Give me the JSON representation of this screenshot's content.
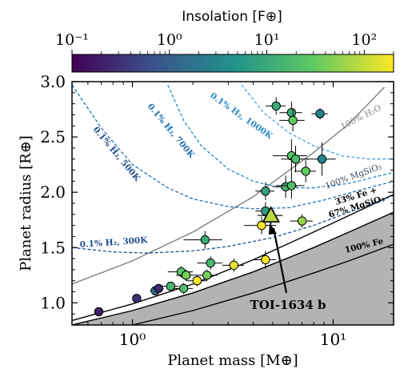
{
  "chart_data": {
    "type": "scatter",
    "xlabel": "Planet mass [M⊕]",
    "ylabel": "Planet radius [R⊕]",
    "xscale": "log",
    "xlim": [
      0.5,
      20
    ],
    "ylim": [
      0.8,
      3.0
    ],
    "x_ticks": [
      1,
      10
    ],
    "x_tick_labels": [
      "10⁰",
      "10¹"
    ],
    "y_ticks": [
      1.0,
      1.5,
      2.0,
      2.5,
      3.0
    ],
    "y_tick_labels": [
      "1.0",
      "1.5",
      "2.0",
      "2.5",
      "3.0"
    ],
    "colorbar": {
      "label": "Insolation [F⊕]",
      "scale": "log",
      "range": [
        0.1,
        200
      ],
      "ticks": [
        0.1,
        1,
        10,
        100
      ],
      "tick_labels": [
        "10⁻¹",
        "10⁰",
        "10¹",
        "10²"
      ],
      "colormap": [
        "#440154",
        "#3b528b",
        "#21918c",
        "#5ec962",
        "#fde725"
      ]
    },
    "shaded_region": {
      "color": "#b3b3b3",
      "description_visible": false
    },
    "curves": [
      {
        "label": "100% H₂O",
        "color": "#7f7f7f",
        "style": "solid",
        "points": [
          [
            0.5,
            1.17
          ],
          [
            1,
            1.38
          ],
          [
            2,
            1.64
          ],
          [
            4,
            1.96
          ],
          [
            8,
            2.36
          ],
          [
            12,
            2.62
          ],
          [
            18,
            2.95
          ]
        ]
      },
      {
        "label": "100% MgSiO₃",
        "color": "#000000",
        "style": "solid",
        "points": [
          [
            0.5,
            0.84
          ],
          [
            1,
            0.99
          ],
          [
            2,
            1.17
          ],
          [
            4,
            1.39
          ],
          [
            8,
            1.64
          ],
          [
            12,
            1.79
          ],
          [
            20,
            1.98
          ]
        ]
      },
      {
        "label": "33% Fe + 67% MgSiO₃",
        "color": "#000000",
        "style": "solid",
        "points": [
          [
            0.5,
            0.8
          ],
          [
            1,
            0.93
          ],
          [
            2,
            1.09
          ],
          [
            4,
            1.28
          ],
          [
            8,
            1.5
          ],
          [
            12,
            1.64
          ],
          [
            20,
            1.82
          ]
        ]
      },
      {
        "label": "100% Fe",
        "color": "#000000",
        "style": "solid",
        "points": [
          [
            1,
            0.8
          ],
          [
            2,
            0.93
          ],
          [
            4,
            1.09
          ],
          [
            8,
            1.27
          ],
          [
            12,
            1.38
          ],
          [
            20,
            1.53
          ]
        ]
      },
      {
        "label": "0.1% H₂, 300K",
        "color": "#1f4e8c",
        "style": "dashed",
        "points": [
          [
            0.5,
            1.5
          ],
          [
            0.8,
            1.46
          ],
          [
            1.2,
            1.45
          ],
          [
            2,
            1.47
          ],
          [
            3,
            1.51
          ],
          [
            5,
            1.59
          ],
          [
            8,
            1.7
          ],
          [
            12,
            1.82
          ],
          [
            20,
            1.97
          ]
        ]
      },
      {
        "label": "0.1% H₂, 500K",
        "color": "#1f6fb0",
        "style": "dashed",
        "points": [
          [
            0.5,
            2.97
          ],
          [
            0.7,
            2.58
          ],
          [
            1,
            2.25
          ],
          [
            1.5,
            2.04
          ],
          [
            2,
            1.94
          ],
          [
            3,
            1.87
          ],
          [
            4,
            1.85
          ],
          [
            6,
            1.86
          ],
          [
            9,
            1.93
          ],
          [
            13,
            2.01
          ],
          [
            20,
            2.1
          ]
        ]
      },
      {
        "label": "0.1% H₂, 700K",
        "color": "#2b88c4",
        "style": "dashed",
        "points": [
          [
            1.5,
            2.97
          ],
          [
            1.8,
            2.65
          ],
          [
            2.2,
            2.42
          ],
          [
            3,
            2.21
          ],
          [
            4,
            2.1
          ],
          [
            5.5,
            2.04
          ],
          [
            8,
            2.04
          ],
          [
            12,
            2.08
          ],
          [
            20,
            2.18
          ]
        ]
      },
      {
        "label": "0.1% H₂, 1000K",
        "color": "#4ba3d6",
        "style": "dashed",
        "points": [
          [
            3.5,
            2.97
          ],
          [
            4.5,
            2.72
          ],
          [
            6,
            2.54
          ],
          [
            8,
            2.42
          ],
          [
            11,
            2.33
          ],
          [
            15,
            2.3
          ],
          [
            20,
            2.3
          ]
        ]
      }
    ],
    "curve_labels": [
      {
        "text": "100% H₂O"
      },
      {
        "text": "100% MgSiO₃"
      },
      {
        "text": "33% Fe +"
      },
      {
        "text": "67% MgSiO₃"
      },
      {
        "text": "100% Fe"
      },
      {
        "text": "0.1% H₂, 300K"
      },
      {
        "text": "0.1% H₂, 500K"
      },
      {
        "text": "0.1% H₂, 700K"
      },
      {
        "text": "0.1% H₂, 1000K"
      }
    ],
    "points": [
      {
        "x": 0.68,
        "y": 0.92,
        "yerr": 0.03,
        "xerr": 0.03,
        "insol": 0.2
      },
      {
        "x": 1.05,
        "y": 1.04,
        "yerr": 0.03,
        "xerr": 0.05,
        "insol": 0.3
      },
      {
        "x": 1.3,
        "y": 1.11,
        "yerr": 0.04,
        "xerr": 0.08,
        "insol": 2
      },
      {
        "x": 1.35,
        "y": 1.13,
        "yerr": 0.04,
        "xerr": 0.08,
        "insol": 0.25
      },
      {
        "x": 1.55,
        "y": 1.15,
        "yerr": 0.04,
        "xerr": 0.15,
        "insol": 15
      },
      {
        "x": 1.8,
        "y": 1.13,
        "yerr": 0.05,
        "xerr": 0.2,
        "insol": 20
      },
      {
        "x": 1.75,
        "y": 1.28,
        "yerr": 0.05,
        "xerr": 0.25,
        "insol": 25
      },
      {
        "x": 1.85,
        "y": 1.25,
        "yerr": 0.05,
        "xerr": 0.2,
        "insol": 40
      },
      {
        "x": 2.1,
        "y": 1.2,
        "yerr": 0.05,
        "xerr": 0.25,
        "insol": 200
      },
      {
        "x": 2.35,
        "y": 1.25,
        "yerr": 0.05,
        "xerr": 0.3,
        "insol": 40
      },
      {
        "x": 2.45,
        "y": 1.36,
        "yerr": 0.06,
        "xerr": 0.35,
        "insol": 15
      },
      {
        "x": 2.3,
        "y": 1.57,
        "yerr": 0.08,
        "xerr": 0.5,
        "insol": 10
      },
      {
        "x": 3.2,
        "y": 1.34,
        "yerr": 0.06,
        "xerr": 0.4,
        "insol": 150
      },
      {
        "x": 4.4,
        "y": 1.7,
        "yerr": 0.08,
        "xerr": 0.8,
        "insol": 200
      },
      {
        "x": 4.6,
        "y": 1.39,
        "yerr": 0.08,
        "xerr": 0.6,
        "insol": 200
      },
      {
        "x": 4.6,
        "y": 1.83,
        "yerr": 0.08,
        "xerr": 0.5,
        "insol": 7
      },
      {
        "x": 4.6,
        "y": 2.01,
        "yerr": 0.08,
        "xerr": 0.5,
        "insol": 8
      },
      {
        "x": 5.2,
        "y": 2.78,
        "yerr": 0.08,
        "xerr": 0.6,
        "insol": 10
      },
      {
        "x": 5.8,
        "y": 2.05,
        "yerr": 0.1,
        "xerr": 0.8,
        "insol": 15
      },
      {
        "x": 6.2,
        "y": 2.06,
        "yerr": 0.12,
        "xerr": 1.0,
        "insol": 20
      },
      {
        "x": 6.2,
        "y": 2.33,
        "yerr": 0.15,
        "xerr": 1.2,
        "insol": 25
      },
      {
        "x": 6.5,
        "y": 2.3,
        "yerr": 0.12,
        "xerr": 1.0,
        "insol": 20
      },
      {
        "x": 6.2,
        "y": 2.72,
        "yerr": 0.1,
        "xerr": 0.8,
        "insol": 12
      },
      {
        "x": 6.3,
        "y": 2.65,
        "yerr": 0.1,
        "xerr": 0.9,
        "insol": 30
      },
      {
        "x": 7.0,
        "y": 1.74,
        "yerr": 0.06,
        "xerr": 0.9,
        "insol": 60
      },
      {
        "x": 7.3,
        "y": 2.19,
        "yerr": 0.1,
        "xerr": 0.9,
        "insol": 30
      },
      {
        "x": 8.6,
        "y": 2.71,
        "yerr": 0.05,
        "xerr": 0.8,
        "insol": 3
      },
      {
        "x": 8.8,
        "y": 2.3,
        "yerr": 0.15,
        "xerr": 1.5,
        "insol": 3
      }
    ],
    "highlight": {
      "label": "TOI-1634 b",
      "x": 4.9,
      "y": 1.79,
      "yerr": 0.08,
      "xerr": 0.7,
      "insol": 90,
      "marker": "triangle"
    }
  }
}
